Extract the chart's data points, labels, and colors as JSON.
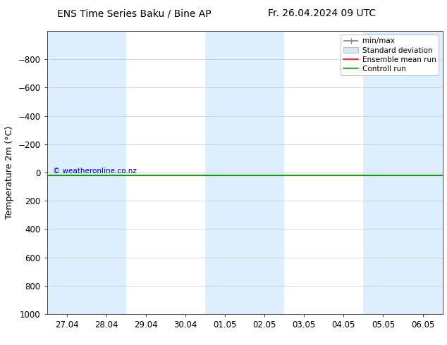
{
  "title_left": "ENS Time Series Baku / Bine AP",
  "title_right": "Fr. 26.04.2024 09 UTC",
  "ylabel": "Temperature 2m (°C)",
  "ylim": [
    -1000,
    1000
  ],
  "yticks": [
    -800,
    -600,
    -400,
    -200,
    0,
    200,
    400,
    600,
    800,
    1000
  ],
  "x_labels": [
    "27.04",
    "28.04",
    "29.04",
    "30.04",
    "01.05",
    "02.05",
    "03.05",
    "04.05",
    "05.05",
    "06.05"
  ],
  "x_values": [
    0,
    1,
    2,
    3,
    4,
    5,
    6,
    7,
    8,
    9
  ],
  "shaded_columns": [
    0,
    1,
    4,
    5,
    8,
    9
  ],
  "shade_color": "#ddeeff",
  "background_color": "#ffffff",
  "plot_bg_color": "#ffffff",
  "green_line_y": 20,
  "red_line_y": 20,
  "watermark": "© weatheronline.co.nz",
  "watermark_color": "#0000bb",
  "legend_items": [
    "min/max",
    "Standard deviation",
    "Ensemble mean run",
    "Controll run"
  ],
  "legend_colors": [
    "#aaaaaa",
    "#cccccc",
    "#ff0000",
    "#00aa00"
  ],
  "minmax_color": "#888888",
  "std_color": "#cccccc",
  "title_fontsize": 10,
  "tick_fontsize": 8.5,
  "ylabel_fontsize": 9
}
